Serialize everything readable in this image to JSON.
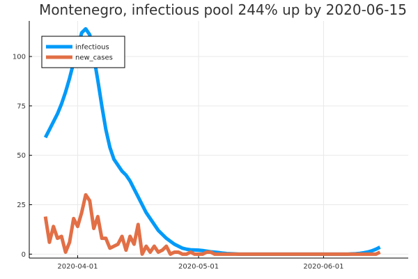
{
  "chart_data": {
    "type": "line",
    "title": "Montenegro, infectious pool 244% up by 2020-06-15",
    "xlabel": "",
    "ylabel": "",
    "x_start": "2020-03-24",
    "x_end": "2020-06-15",
    "xlim": [
      "2020-03-20",
      "2020-06-22"
    ],
    "ylim": [
      -2,
      118
    ],
    "grid": true,
    "legend_position": "top-left",
    "x_ticks": [
      "2020-04-01",
      "2020-05-01",
      "2020-06-01"
    ],
    "y_ticks": [
      0,
      25,
      50,
      75,
      100
    ],
    "series": [
      {
        "name": "infectious",
        "color": "#009af9",
        "values": [
          59,
          63,
          67,
          71,
          76,
          82,
          89,
          97,
          104,
          112,
          114,
          111,
          100,
          88,
          75,
          63,
          54,
          48,
          45,
          42,
          40,
          37,
          33,
          29,
          25,
          21,
          18,
          15,
          12,
          10,
          8,
          6.5,
          5,
          4,
          3,
          2.5,
          2.2,
          2.1,
          2,
          1.8,
          1.5,
          1.2,
          1,
          0.8,
          0.5,
          0.3,
          0.2,
          0.1,
          0,
          0,
          0,
          0,
          0,
          0,
          0,
          0,
          0,
          0,
          0,
          0,
          0,
          0,
          0,
          0,
          0,
          0,
          0,
          0,
          0,
          0,
          0,
          0,
          0,
          0,
          0,
          0,
          0.1,
          0.2,
          0.4,
          0.7,
          1.1,
          1.7,
          2.5,
          3.5
        ]
      },
      {
        "name": "new_cases",
        "color": "#e26f46",
        "values": [
          19,
          6,
          14,
          8,
          9,
          1,
          6,
          18,
          14,
          21,
          30,
          27,
          13,
          19,
          8,
          8,
          3,
          4,
          5,
          9,
          2,
          9,
          5,
          15,
          0,
          4,
          1,
          4,
          1,
          2,
          4,
          0,
          1,
          1,
          0,
          0,
          1,
          0,
          0,
          0,
          1,
          1,
          0,
          0,
          0,
          0,
          0,
          0,
          0,
          0,
          0,
          0,
          0,
          0,
          0,
          0,
          0,
          0,
          0,
          0,
          0,
          0,
          0,
          0,
          0,
          0,
          0,
          0,
          0,
          0,
          0,
          0,
          0,
          0,
          0,
          0,
          0,
          0,
          0,
          0,
          0,
          0,
          0,
          1
        ]
      }
    ]
  }
}
